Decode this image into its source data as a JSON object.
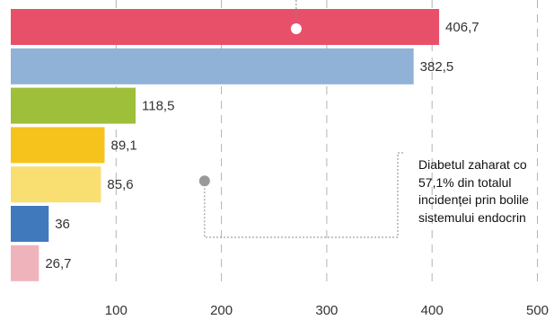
{
  "chart_data": {
    "type": "bar",
    "orientation": "horizontal",
    "values": [
      406.7,
      382.5,
      118.5,
      89.1,
      85.6,
      36,
      26.7
    ],
    "value_labels": [
      "406,7",
      "382,5",
      "118,5",
      "89,1",
      "85,6",
      "36",
      "26,7"
    ],
    "colors": [
      "#e8506a",
      "#8fb2d6",
      "#9dbf3a",
      "#f6c31c",
      "#f9df72",
      "#4179bd",
      "#efb3bc"
    ],
    "xticks": [
      100,
      200,
      300,
      400,
      500
    ],
    "xlim": [
      0,
      500
    ],
    "grid": true,
    "legend": "none",
    "annotation": {
      "lines": [
        "Diabetul zaharat co",
        "57,1% din totalul",
        "incidenței prin bolile",
        "sistemului endocrin"
      ],
      "marker_on_bar": 0,
      "marker_value": 271
    },
    "callout_marker": {
      "bar_index": 4,
      "value": 184
    },
    "point_colors": {
      "highlight": "#ffffff",
      "muted": "#999999"
    }
  }
}
